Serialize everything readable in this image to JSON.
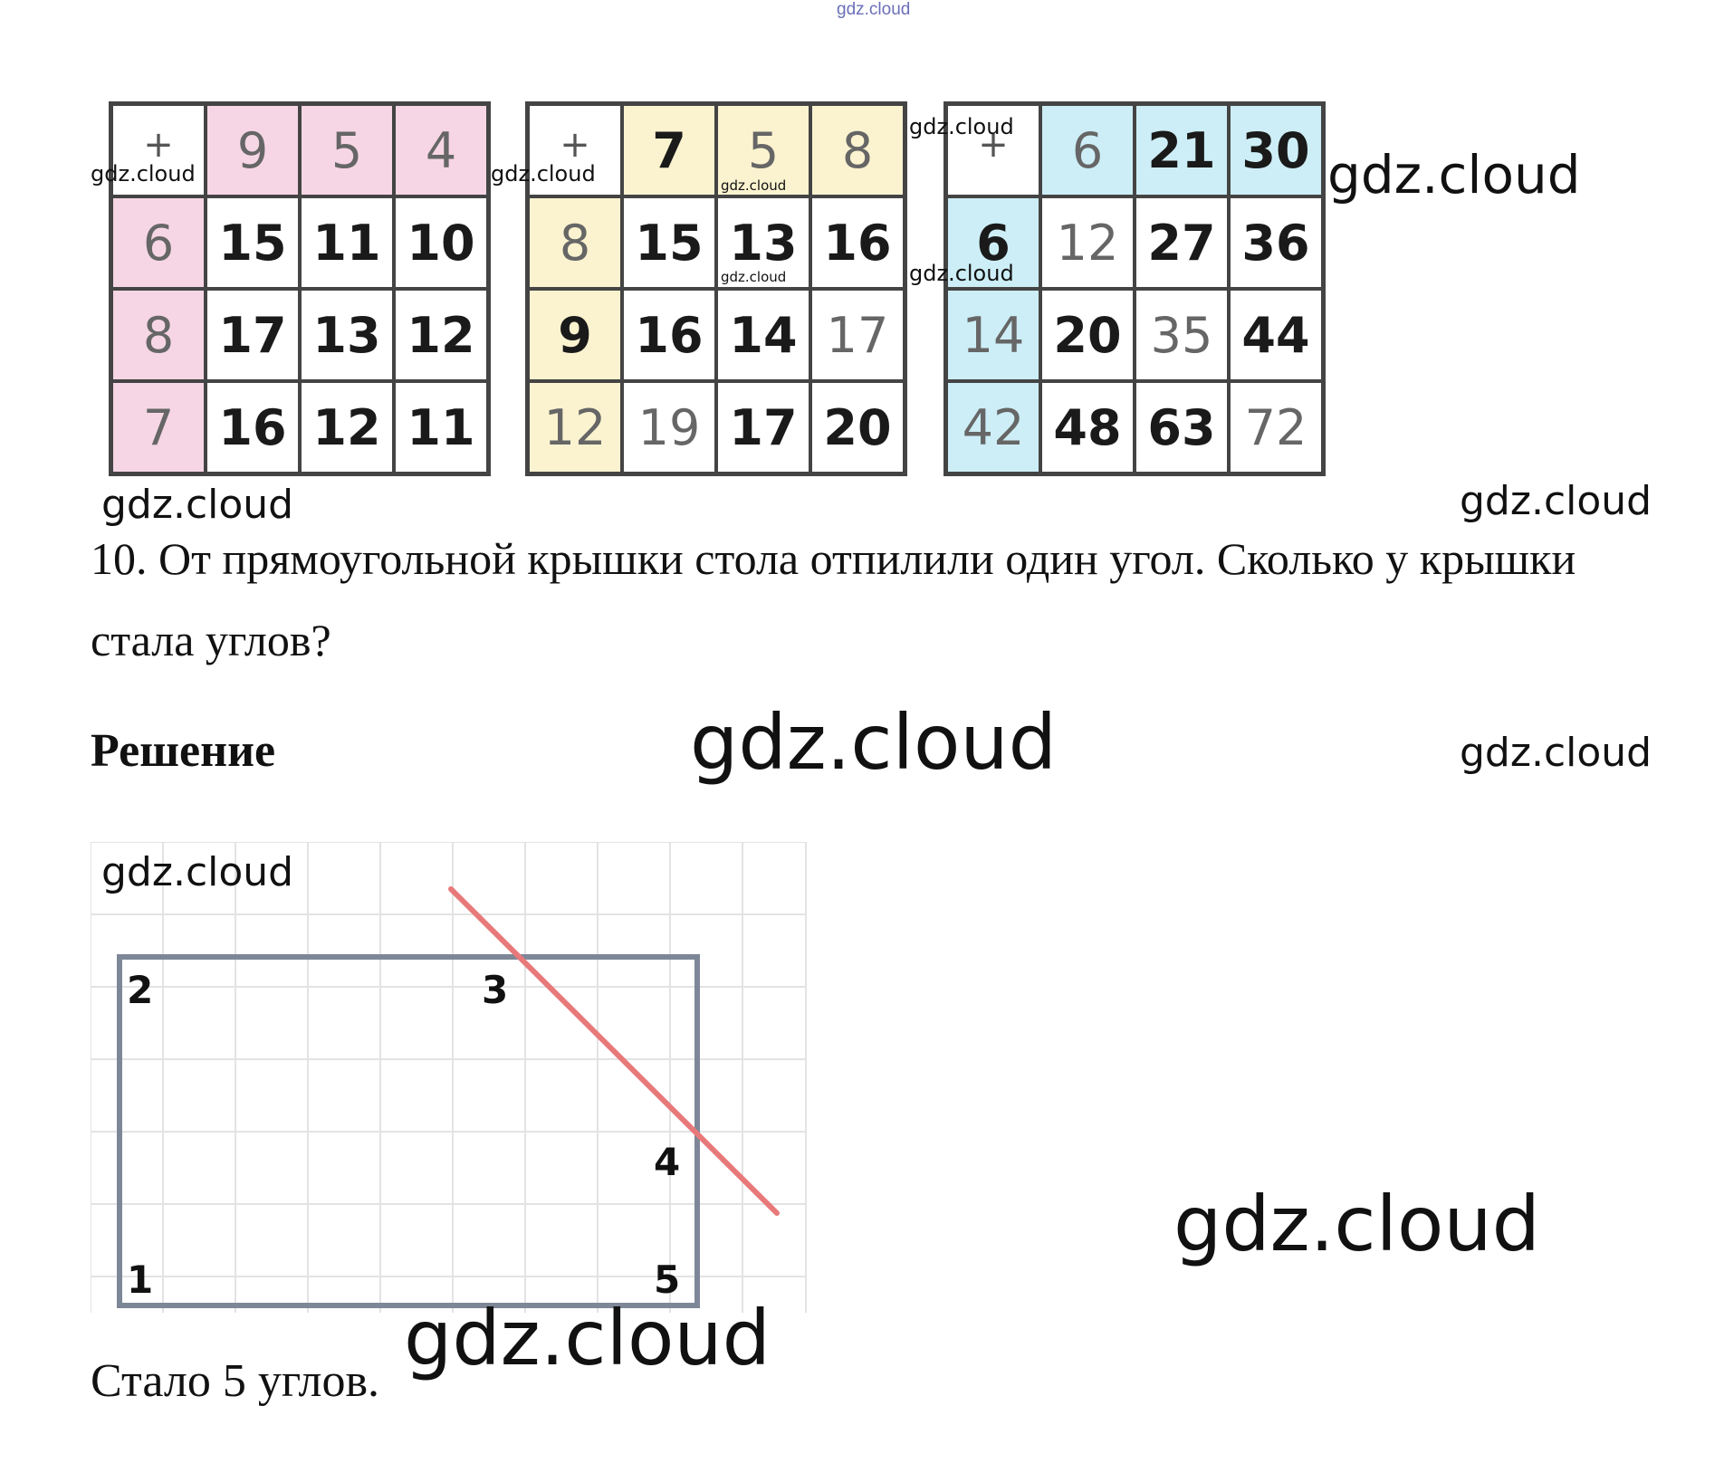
{
  "watermark_text": "gdz.cloud",
  "tables": [
    {
      "name": "pink",
      "accent": "#f6d6e4",
      "operator": "+",
      "col_headers": [
        "9",
        "5",
        "4"
      ],
      "rows": [
        {
          "header": "6",
          "cells": [
            "15",
            "11",
            "10"
          ]
        },
        {
          "header": "8",
          "cells": [
            "17",
            "13",
            "12"
          ]
        },
        {
          "header": "7",
          "cells": [
            "16",
            "12",
            "11"
          ]
        }
      ]
    },
    {
      "name": "yellow",
      "accent": "#fbf3cf",
      "operator": "+",
      "col_headers": [
        "7",
        "5",
        "8"
      ],
      "rows": [
        {
          "header": "8",
          "cells": [
            "15",
            "13",
            "16"
          ]
        },
        {
          "header": "9",
          "cells": [
            "16",
            "14",
            "17"
          ]
        },
        {
          "header": "12",
          "cells": [
            "19",
            "17",
            "20"
          ]
        }
      ]
    },
    {
      "name": "blue",
      "accent": "#cdeef6",
      "operator": "+",
      "col_headers": [
        "6",
        "21",
        "30"
      ],
      "rows": [
        {
          "header": "6",
          "cells": [
            "12",
            "27",
            "36"
          ]
        },
        {
          "header": "14",
          "cells": [
            "20",
            "35",
            "44"
          ]
        },
        {
          "header": "42",
          "cells": [
            "48",
            "63",
            "72"
          ]
        }
      ]
    }
  ],
  "task": {
    "text": "10. От прямоугольной крышки стола отпилили один угол. Сколько у крышки стала углов?"
  },
  "solution": {
    "heading": "Решение",
    "corners": [
      "1",
      "2",
      "3",
      "4",
      "5"
    ],
    "answer": "Стало 5 углов."
  },
  "colors": {
    "rectangle": "#7d8797",
    "cut_line": "#e8797a",
    "grid": "#e3e3e3"
  }
}
